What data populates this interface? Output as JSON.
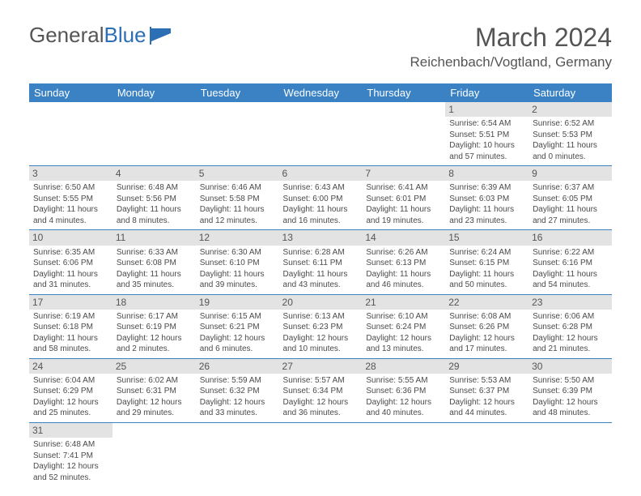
{
  "logo": {
    "text1": "General",
    "text2": "Blue"
  },
  "title": "March 2024",
  "location": "Reichenbach/Vogtland, Germany",
  "colors": {
    "header_bg": "#3a82c4",
    "header_text": "#ffffff",
    "daynum_bg": "#e3e3e3",
    "border": "#3a82c4",
    "text": "#4a4a4a"
  },
  "day_headers": [
    "Sunday",
    "Monday",
    "Tuesday",
    "Wednesday",
    "Thursday",
    "Friday",
    "Saturday"
  ],
  "weeks": [
    [
      null,
      null,
      null,
      null,
      null,
      {
        "n": "1",
        "sr": "6:54 AM",
        "ss": "5:51 PM",
        "dl": "10 hours and 57 minutes."
      },
      {
        "n": "2",
        "sr": "6:52 AM",
        "ss": "5:53 PM",
        "dl": "11 hours and 0 minutes."
      }
    ],
    [
      {
        "n": "3",
        "sr": "6:50 AM",
        "ss": "5:55 PM",
        "dl": "11 hours and 4 minutes."
      },
      {
        "n": "4",
        "sr": "6:48 AM",
        "ss": "5:56 PM",
        "dl": "11 hours and 8 minutes."
      },
      {
        "n": "5",
        "sr": "6:46 AM",
        "ss": "5:58 PM",
        "dl": "11 hours and 12 minutes."
      },
      {
        "n": "6",
        "sr": "6:43 AM",
        "ss": "6:00 PM",
        "dl": "11 hours and 16 minutes."
      },
      {
        "n": "7",
        "sr": "6:41 AM",
        "ss": "6:01 PM",
        "dl": "11 hours and 19 minutes."
      },
      {
        "n": "8",
        "sr": "6:39 AM",
        "ss": "6:03 PM",
        "dl": "11 hours and 23 minutes."
      },
      {
        "n": "9",
        "sr": "6:37 AM",
        "ss": "6:05 PM",
        "dl": "11 hours and 27 minutes."
      }
    ],
    [
      {
        "n": "10",
        "sr": "6:35 AM",
        "ss": "6:06 PM",
        "dl": "11 hours and 31 minutes."
      },
      {
        "n": "11",
        "sr": "6:33 AM",
        "ss": "6:08 PM",
        "dl": "11 hours and 35 minutes."
      },
      {
        "n": "12",
        "sr": "6:30 AM",
        "ss": "6:10 PM",
        "dl": "11 hours and 39 minutes."
      },
      {
        "n": "13",
        "sr": "6:28 AM",
        "ss": "6:11 PM",
        "dl": "11 hours and 43 minutes."
      },
      {
        "n": "14",
        "sr": "6:26 AM",
        "ss": "6:13 PM",
        "dl": "11 hours and 46 minutes."
      },
      {
        "n": "15",
        "sr": "6:24 AM",
        "ss": "6:15 PM",
        "dl": "11 hours and 50 minutes."
      },
      {
        "n": "16",
        "sr": "6:22 AM",
        "ss": "6:16 PM",
        "dl": "11 hours and 54 minutes."
      }
    ],
    [
      {
        "n": "17",
        "sr": "6:19 AM",
        "ss": "6:18 PM",
        "dl": "11 hours and 58 minutes."
      },
      {
        "n": "18",
        "sr": "6:17 AM",
        "ss": "6:19 PM",
        "dl": "12 hours and 2 minutes."
      },
      {
        "n": "19",
        "sr": "6:15 AM",
        "ss": "6:21 PM",
        "dl": "12 hours and 6 minutes."
      },
      {
        "n": "20",
        "sr": "6:13 AM",
        "ss": "6:23 PM",
        "dl": "12 hours and 10 minutes."
      },
      {
        "n": "21",
        "sr": "6:10 AM",
        "ss": "6:24 PM",
        "dl": "12 hours and 13 minutes."
      },
      {
        "n": "22",
        "sr": "6:08 AM",
        "ss": "6:26 PM",
        "dl": "12 hours and 17 minutes."
      },
      {
        "n": "23",
        "sr": "6:06 AM",
        "ss": "6:28 PM",
        "dl": "12 hours and 21 minutes."
      }
    ],
    [
      {
        "n": "24",
        "sr": "6:04 AM",
        "ss": "6:29 PM",
        "dl": "12 hours and 25 minutes."
      },
      {
        "n": "25",
        "sr": "6:02 AM",
        "ss": "6:31 PM",
        "dl": "12 hours and 29 minutes."
      },
      {
        "n": "26",
        "sr": "5:59 AM",
        "ss": "6:32 PM",
        "dl": "12 hours and 33 minutes."
      },
      {
        "n": "27",
        "sr": "5:57 AM",
        "ss": "6:34 PM",
        "dl": "12 hours and 36 minutes."
      },
      {
        "n": "28",
        "sr": "5:55 AM",
        "ss": "6:36 PM",
        "dl": "12 hours and 40 minutes."
      },
      {
        "n": "29",
        "sr": "5:53 AM",
        "ss": "6:37 PM",
        "dl": "12 hours and 44 minutes."
      },
      {
        "n": "30",
        "sr": "5:50 AM",
        "ss": "6:39 PM",
        "dl": "12 hours and 48 minutes."
      }
    ],
    [
      {
        "n": "31",
        "sr": "6:48 AM",
        "ss": "7:41 PM",
        "dl": "12 hours and 52 minutes."
      },
      null,
      null,
      null,
      null,
      null,
      null
    ]
  ],
  "labels": {
    "sunrise": "Sunrise:",
    "sunset": "Sunset:",
    "daylight": "Daylight:"
  }
}
